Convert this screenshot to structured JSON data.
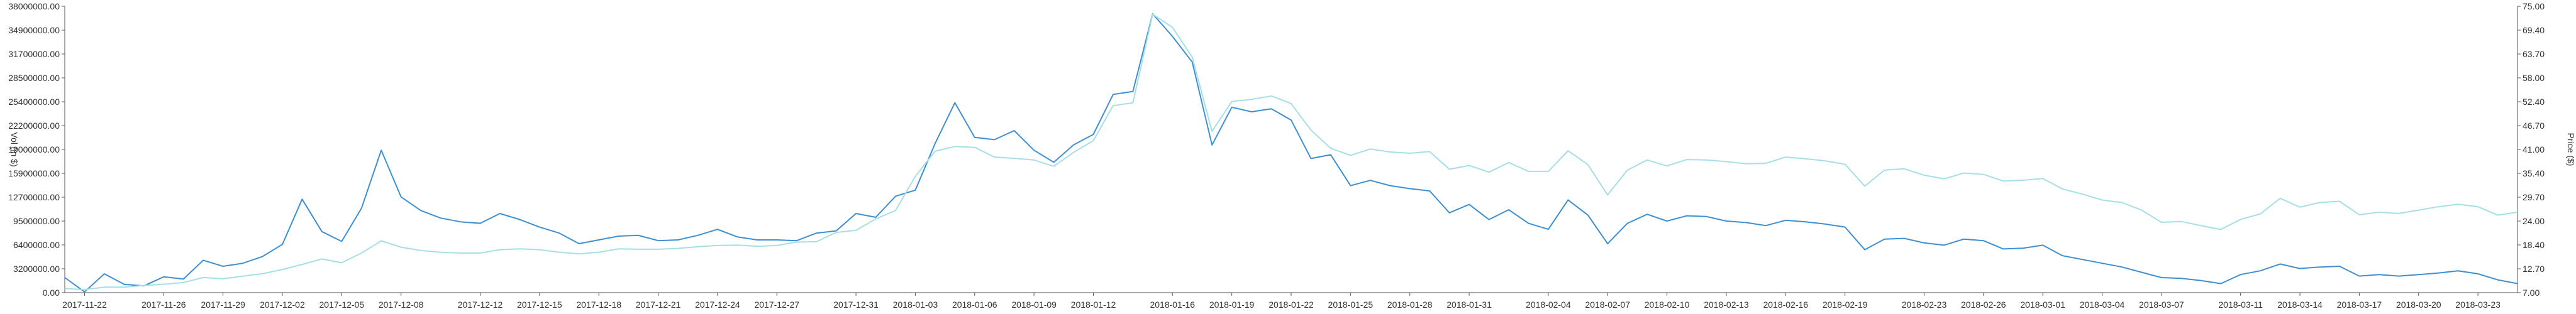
{
  "chart_data": {
    "type": "line",
    "left_axis": {
      "label": "Vol (in $)",
      "ylim": [
        0,
        38000000
      ],
      "ticks": [
        "0.00",
        "3200000.00",
        "6400000.00",
        "9500000.00",
        "12700000.00",
        "15900000.00",
        "19000000.00",
        "22200000.00",
        "25400000.00",
        "28500000.00",
        "31700000.00",
        "34900000.00",
        "38000000.00"
      ]
    },
    "right_axis": {
      "label": "Price ($)",
      "ylim": [
        7.0,
        75.0
      ],
      "ticks": [
        "7.00",
        "12.70",
        "18.40",
        "24.00",
        "29.70",
        "35.40",
        "41.00",
        "46.70",
        "52.40",
        "58.00",
        "63.70",
        "69.40",
        "75.00"
      ]
    },
    "x_ticks": [
      "2017-11-22",
      "2017-11-26",
      "2017-11-29",
      "2017-12-02",
      "2017-12-05",
      "2017-12-08",
      "2017-12-12",
      "2017-12-15",
      "2017-12-18",
      "2017-12-21",
      "2017-12-24",
      "2017-12-27",
      "2017-12-31",
      "2018-01-03",
      "2018-01-06",
      "2018-01-09",
      "2018-01-12",
      "2018-01-16",
      "2018-01-19",
      "2018-01-22",
      "2018-01-25",
      "2018-01-28",
      "2018-01-31",
      "2018-02-04",
      "2018-02-07",
      "2018-02-10",
      "2018-02-13",
      "2018-02-16",
      "2018-02-19",
      "2018-02-23",
      "2018-02-26",
      "2018-03-01",
      "2018-03-04",
      "2018-03-07",
      "2018-03-11",
      "2018-03-14",
      "2018-03-17",
      "2018-03-20",
      "2018-03-23"
    ],
    "x": [
      "2017-11-21",
      "2017-11-22",
      "2017-11-23",
      "2017-11-24",
      "2017-11-25",
      "2017-11-26",
      "2017-11-27",
      "2017-11-28",
      "2017-11-29",
      "2017-11-30",
      "2017-12-01",
      "2017-12-02",
      "2017-12-03",
      "2017-12-04",
      "2017-12-05",
      "2017-12-06",
      "2017-12-07",
      "2017-12-08",
      "2017-12-09",
      "2017-12-10",
      "2017-12-11",
      "2017-12-12",
      "2017-12-13",
      "2017-12-14",
      "2017-12-15",
      "2017-12-16",
      "2017-12-17",
      "2017-12-18",
      "2017-12-19",
      "2017-12-20",
      "2017-12-21",
      "2017-12-22",
      "2017-12-23",
      "2017-12-24",
      "2017-12-25",
      "2017-12-26",
      "2017-12-27",
      "2017-12-28",
      "2017-12-29",
      "2017-12-30",
      "2017-12-31",
      "2018-01-01",
      "2018-01-02",
      "2018-01-03",
      "2018-01-04",
      "2018-01-05",
      "2018-01-06",
      "2018-01-07",
      "2018-01-08",
      "2018-01-09",
      "2018-01-10",
      "2018-01-11",
      "2018-01-12",
      "2018-01-13",
      "2018-01-14",
      "2018-01-15",
      "2018-01-16",
      "2018-01-17",
      "2018-01-18",
      "2018-01-19",
      "2018-01-20",
      "2018-01-21",
      "2018-01-22",
      "2018-01-23",
      "2018-01-24",
      "2018-01-25",
      "2018-01-26",
      "2018-01-27",
      "2018-01-28",
      "2018-01-29",
      "2018-01-30",
      "2018-01-31",
      "2018-02-01",
      "2018-02-02",
      "2018-02-03",
      "2018-02-04",
      "2018-02-05",
      "2018-02-06",
      "2018-02-07",
      "2018-02-08",
      "2018-02-09",
      "2018-02-10",
      "2018-02-11",
      "2018-02-12",
      "2018-02-13",
      "2018-02-14",
      "2018-02-15",
      "2018-02-16",
      "2018-02-17",
      "2018-02-18",
      "2018-02-19",
      "2018-02-20",
      "2018-02-21",
      "2018-02-22",
      "2018-02-23",
      "2018-02-24",
      "2018-02-25",
      "2018-02-26",
      "2018-02-27",
      "2018-02-28",
      "2018-03-01",
      "2018-03-02",
      "2018-03-03",
      "2018-03-04",
      "2018-03-05",
      "2018-03-06",
      "2018-03-07",
      "2018-03-08",
      "2018-03-09",
      "2018-03-10",
      "2018-03-11",
      "2018-03-12",
      "2018-03-13",
      "2018-03-14",
      "2018-03-15",
      "2018-03-16",
      "2018-03-17",
      "2018-03-18",
      "2018-03-19",
      "2018-03-20",
      "2018-03-21",
      "2018-03-22",
      "2018-03-23",
      "2018-03-24",
      "2018-03-25"
    ],
    "series": [
      {
        "axis": "left",
        "color": "#3d8fd1",
        "values": [
          2000000,
          100000,
          2500000,
          1100000,
          900000,
          2100000,
          1800000,
          4300000,
          3500000,
          3900000,
          4800000,
          6400000,
          12400000,
          8100000,
          6800000,
          11200000,
          18900000,
          12700000,
          10900000,
          9900000,
          9400000,
          9200000,
          10500000,
          9700000,
          8700000,
          7900000,
          6500000,
          7000000,
          7500000,
          7600000,
          6900000,
          7000000,
          7600000,
          8400000,
          7400000,
          7000000,
          7000000,
          6900000,
          7900000,
          8200000,
          10500000,
          10000000,
          12800000,
          13600000,
          19800000,
          25200000,
          20600000,
          20300000,
          21500000,
          18900000,
          17300000,
          19600000,
          21000000,
          26300000,
          26700000,
          37000000,
          34000000,
          30600000,
          19600000,
          24600000,
          24000000,
          24400000,
          22900000,
          17800000,
          18300000,
          14200000,
          14900000,
          14200000,
          13800000,
          13500000,
          10600000,
          11700000,
          9700000,
          11000000,
          9200000,
          8400000,
          12300000,
          10300000,
          6500000,
          9200000,
          10400000,
          9500000,
          10200000,
          10100000,
          9500000,
          9300000,
          8900000,
          9600000,
          9400000,
          9100000,
          8700000,
          5700000,
          7100000,
          7200000,
          6600000,
          6300000,
          7100000,
          6900000,
          5800000,
          5900000,
          6300000,
          4900000,
          4400000,
          3900000,
          3400000,
          2700000,
          2000000,
          1900000,
          1600000,
          1200000,
          2400000,
          2900000,
          3800000,
          3200000,
          3400000,
          3500000,
          2200000,
          2400000,
          2200000,
          2400000,
          2600000,
          2900000,
          2500000,
          1700000,
          1200000
        ]
      },
      {
        "axis": "right",
        "color": "#a5dfe6",
        "values": [
          8.0,
          7.7,
          8.3,
          8.3,
          8.7,
          9.0,
          9.4,
          10.6,
          10.3,
          10.9,
          11.5,
          12.5,
          13.7,
          15.0,
          14.1,
          16.4,
          19.3,
          17.8,
          17.0,
          16.6,
          16.4,
          16.4,
          17.2,
          17.4,
          17.2,
          16.6,
          16.2,
          16.6,
          17.4,
          17.3,
          17.3,
          17.5,
          17.9,
          18.2,
          18.3,
          18.0,
          18.2,
          19.0,
          19.1,
          21.3,
          21.8,
          24.5,
          26.5,
          34.6,
          40.6,
          41.7,
          41.5,
          39.2,
          38.9,
          38.5,
          37.0,
          40.3,
          43.1,
          51.4,
          52.1,
          73.1,
          70.0,
          62.9,
          45.3,
          52.4,
          52.9,
          53.7,
          51.9,
          45.6,
          41.3,
          39.6,
          41.1,
          40.4,
          40.1,
          40.5,
          36.3,
          37.2,
          35.6,
          37.9,
          35.8,
          35.8,
          40.7,
          37.4,
          30.2,
          36.1,
          38.5,
          37.1,
          38.6,
          38.5,
          38.1,
          37.6,
          37.7,
          39.2,
          38.8,
          38.3,
          37.5,
          32.3,
          36.1,
          36.4,
          34.9,
          34.0,
          35.4,
          35.1,
          33.5,
          33.7,
          34.1,
          31.6,
          30.4,
          29.0,
          28.4,
          26.6,
          23.7,
          23.9,
          22.9,
          22.0,
          24.4,
          25.7,
          29.4,
          27.3,
          28.4,
          28.7,
          25.5,
          26.1,
          25.8,
          26.6,
          27.4,
          28.0,
          27.4,
          25.4,
          26.1
        ]
      }
    ]
  }
}
